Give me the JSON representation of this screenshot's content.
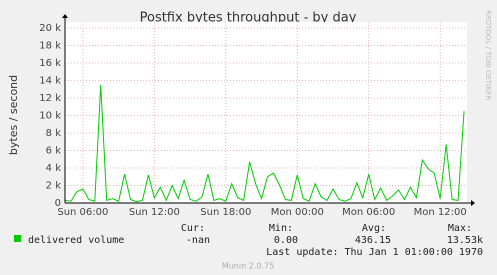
{
  "chart_data": {
    "type": "line",
    "title": "Postfix bytes throughput - by day",
    "y_label": "bytes / second",
    "watermark": "RRDTOOL / TOBI OETIKER",
    "footer": "Munin 2.0.75",
    "xlim": [
      4.5,
      38.25
    ],
    "xticks": [
      {
        "value": 6,
        "label": "Sun 06:00"
      },
      {
        "value": 12,
        "label": "Sun 12:00"
      },
      {
        "value": 18,
        "label": "Sun 18:00"
      },
      {
        "value": 24,
        "label": "Mon 00:00"
      },
      {
        "value": 30,
        "label": "Mon 06:00"
      },
      {
        "value": 36,
        "label": "Mon 12:00"
      }
    ],
    "ylim": [
      0,
      20000
    ],
    "yticks": [
      0,
      {
        "value": 2000,
        "label": "2 k"
      },
      {
        "value": 4000,
        "label": "4 k"
      },
      {
        "value": 6000,
        "label": "6 k"
      },
      {
        "value": 8000,
        "label": "8 k"
      },
      {
        "value": 10000,
        "label": "10 k"
      },
      {
        "value": 12000,
        "label": "12 k"
      },
      {
        "value": 14000,
        "label": "14 k"
      },
      {
        "value": 16000,
        "label": "16 k"
      },
      {
        "value": 18000,
        "label": "18 k"
      },
      {
        "value": 20000,
        "label": "20 k"
      }
    ],
    "grid": true,
    "x": [
      4.5,
      5,
      5.5,
      6,
      6.5,
      7,
      7.5,
      8,
      8.5,
      9,
      9.5,
      10,
      10.5,
      11,
      11.5,
      12,
      12.5,
      13,
      13.5,
      14,
      14.5,
      15,
      15.5,
      16,
      16.5,
      17,
      17.5,
      18,
      18.5,
      19,
      19.5,
      20,
      20.5,
      21,
      21.5,
      22,
      22.5,
      23,
      23.5,
      24,
      24.5,
      25,
      25.5,
      26,
      26.5,
      27,
      27.5,
      28,
      28.5,
      29,
      29.5,
      30,
      30.5,
      31,
      31.5,
      32,
      32.5,
      33,
      33.5,
      34,
      34.5,
      35,
      35.5,
      36,
      36.5,
      37,
      37.5,
      38
    ],
    "series": [
      {
        "name": "delivered volume",
        "color": "#00cc00",
        "values": [
          300,
          200,
          1300,
          1600,
          400,
          200,
          13500,
          300,
          500,
          200,
          3300,
          400,
          150,
          300,
          3200,
          600,
          1800,
          300,
          2000,
          500,
          2600,
          400,
          200,
          700,
          3300,
          300,
          500,
          200,
          2200,
          600,
          300,
          4700,
          2200,
          500,
          3000,
          3400,
          2100,
          400,
          300,
          3200,
          500,
          200,
          2200,
          700,
          300,
          1600,
          400,
          200,
          500,
          2300,
          600,
          3300,
          400,
          1700,
          300,
          800,
          1500,
          400,
          1800,
          600,
          4900,
          3900,
          3400,
          500,
          6700,
          400,
          300,
          10500
        ]
      }
    ],
    "summary": {
      "headers": [
        "Cur:",
        "Min:",
        "Avg:",
        "Max:"
      ],
      "values": [
        "-nan",
        "0.00",
        "436.15",
        "13.53k"
      ],
      "last_update": "Last update: Thu Jan  1 01:00:00 1970"
    }
  }
}
